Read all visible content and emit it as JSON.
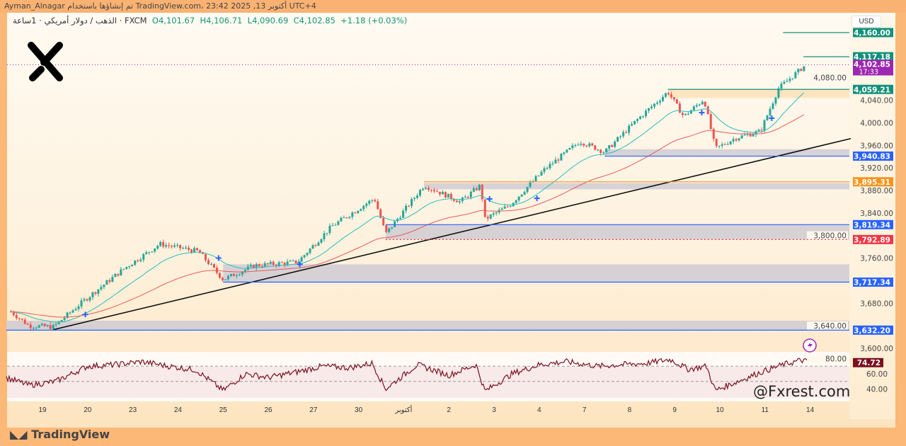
{
  "header": {
    "snapshot_text": "Ayman_Alnagar تم إنشاؤها باستخدام TradingView.com، 23:42 2025 ,13 أكتوبر UTC+4"
  },
  "symbol": {
    "title": "الذهب / دولار أمريكي · 1ساعة · FXCM",
    "open": "O4,101.67",
    "high": "H4,106.71",
    "low": "L4,090.69",
    "close": "C4,102.85",
    "change": "+1.18 (+0.03%)"
  },
  "currency": "USD",
  "watermark": "@Fxrest.com",
  "footer_logo": "TradingView",
  "brand_logo_text": "X",
  "colors": {
    "up": "#26a69a",
    "down": "#ef5350",
    "ema_fast": "#2bbdbd",
    "ema_slow": "#e85a5a",
    "trend": "#111111",
    "rsi": "#7a1022",
    "zone": "#cfcbd3",
    "accent_purple": "#9c27b0"
  },
  "chart_data": {
    "type": "candlestick",
    "timeframe": "1h",
    "x_tick_labels": [
      "19",
      "20",
      "23",
      "24",
      "25",
      "26",
      "27",
      "30",
      "أكتوبر",
      "2",
      "3",
      "4",
      "7",
      "8",
      "9",
      "10",
      "11",
      "14"
    ],
    "price_axis": {
      "ylim": [
        3592,
        4175
      ],
      "ticks": [
        "4,080.00",
        "4,040.00",
        "4,000.00",
        "3,960.00",
        "3,920.00",
        "3,880.00",
        "3,840.00",
        "3,800.00",
        "3,760.00",
        "3,680.00",
        "3,640.00",
        "3,600.00"
      ],
      "tick_values": [
        4080,
        4040,
        4000,
        3960,
        3920,
        3880,
        3840,
        3800,
        3760,
        3680,
        3640,
        3600
      ]
    },
    "price_path": [
      [
        -0.7,
        3665
      ],
      [
        -0.3,
        3640
      ],
      [
        0.24,
        3638
      ],
      [
        1.0,
        3690
      ],
      [
        1.8,
        3741
      ],
      [
        2.6,
        3785
      ],
      [
        3.45,
        3772
      ],
      [
        4.0,
        3722
      ],
      [
        4.7,
        3747
      ],
      [
        5.65,
        3753
      ],
      [
        6.4,
        3816
      ],
      [
        7.35,
        3866
      ],
      [
        7.6,
        3803
      ],
      [
        8.45,
        3889
      ],
      [
        9.25,
        3860
      ],
      [
        9.7,
        3889
      ],
      [
        9.8,
        3829
      ],
      [
        10.35,
        3854
      ],
      [
        11.1,
        3916
      ],
      [
        11.9,
        3967
      ],
      [
        12.45,
        3948
      ],
      [
        13.15,
        4004
      ],
      [
        13.85,
        4055
      ],
      [
        14.2,
        4011
      ],
      [
        14.65,
        4042
      ],
      [
        14.9,
        3954
      ],
      [
        15.35,
        3973
      ],
      [
        15.9,
        3985
      ],
      [
        16.3,
        4061
      ],
      [
        16.9,
        4102.85
      ]
    ],
    "levels": [
      {
        "label": "4,160.00",
        "value": 4160,
        "color": "#13917a",
        "from": 16.4
      },
      {
        "label": "4,117.18",
        "value": 4117.18,
        "color": "#13917a",
        "from": 16.85
      },
      {
        "label": "4,059.21",
        "value": 4059.21,
        "color": "#13917a",
        "from": 13.85,
        "zone": [
          4044,
          4059.21
        ],
        "zone_color": "#fde2b8"
      },
      {
        "label": "3,940.83",
        "value": 3940.83,
        "color": "#2962ff",
        "from": 12.45,
        "zone": [
          3940.83,
          3953
        ]
      },
      {
        "label": "3,895.31",
        "value": 3895.31,
        "color": "#f7931a",
        "from": 8.45,
        "zone": [
          3882,
          3893
        ]
      },
      {
        "label": "3,819.34",
        "value": 3819.34,
        "color": "#2962ff",
        "from": 7.6,
        "zone": [
          3793,
          3819.34
        ]
      },
      {
        "label": "3,792.89",
        "value": 3792.89,
        "color": "#f23645",
        "from": 7.6,
        "dotted": true
      },
      {
        "label": "3,717.34",
        "value": 3717.34,
        "color": "#2962ff",
        "from": 4.0,
        "zone": [
          3717.34,
          3749
        ]
      },
      {
        "label": "3,632.20",
        "value": 3632.2,
        "color": "#2962ff",
        "from": -0.8,
        "zone": [
          3632.2,
          3649
        ]
      }
    ],
    "current_price": {
      "label": "4,102.85",
      "countdown": "17:33",
      "value": 4102.85
    },
    "trendline": [
      [
        0.24,
        3633
      ],
      [
        17.9,
        3972
      ]
    ],
    "markers": [
      [
        0.95,
        3660
      ],
      [
        3.9,
        3760
      ],
      [
        5.7,
        3749
      ],
      [
        9.9,
        3865
      ],
      [
        10.95,
        3866
      ],
      [
        14.6,
        4018
      ],
      [
        16.15,
        4008
      ]
    ],
    "rsi": {
      "current_label": "74.72",
      "current": 74.72,
      "ticks": [
        "80.00",
        "60.00",
        "40.00"
      ],
      "tick_values": [
        80,
        60,
        40
      ],
      "path": [
        [
          -0.8,
          55
        ],
        [
          -0.3,
          45
        ],
        [
          0.3,
          50
        ],
        [
          1.0,
          70
        ],
        [
          1.6,
          72
        ],
        [
          2.2,
          76
        ],
        [
          2.8,
          70
        ],
        [
          3.4,
          65
        ],
        [
          4.0,
          38
        ],
        [
          4.5,
          60
        ],
        [
          5.0,
          55
        ],
        [
          5.6,
          62
        ],
        [
          6.2,
          70
        ],
        [
          6.8,
          68
        ],
        [
          7.3,
          74
        ],
        [
          7.6,
          40
        ],
        [
          8.3,
          72
        ],
        [
          9.0,
          58
        ],
        [
          9.6,
          72
        ],
        [
          9.8,
          37
        ],
        [
          10.4,
          60
        ],
        [
          11.0,
          72
        ],
        [
          11.6,
          76
        ],
        [
          12.3,
          70
        ],
        [
          12.8,
          72
        ],
        [
          13.4,
          74
        ],
        [
          13.9,
          79
        ],
        [
          14.3,
          66
        ],
        [
          14.7,
          70
        ],
        [
          14.9,
          38
        ],
        [
          15.4,
          50
        ],
        [
          15.9,
          62
        ],
        [
          16.4,
          72
        ],
        [
          16.8,
          78
        ],
        [
          17.0,
          75
        ]
      ]
    }
  }
}
